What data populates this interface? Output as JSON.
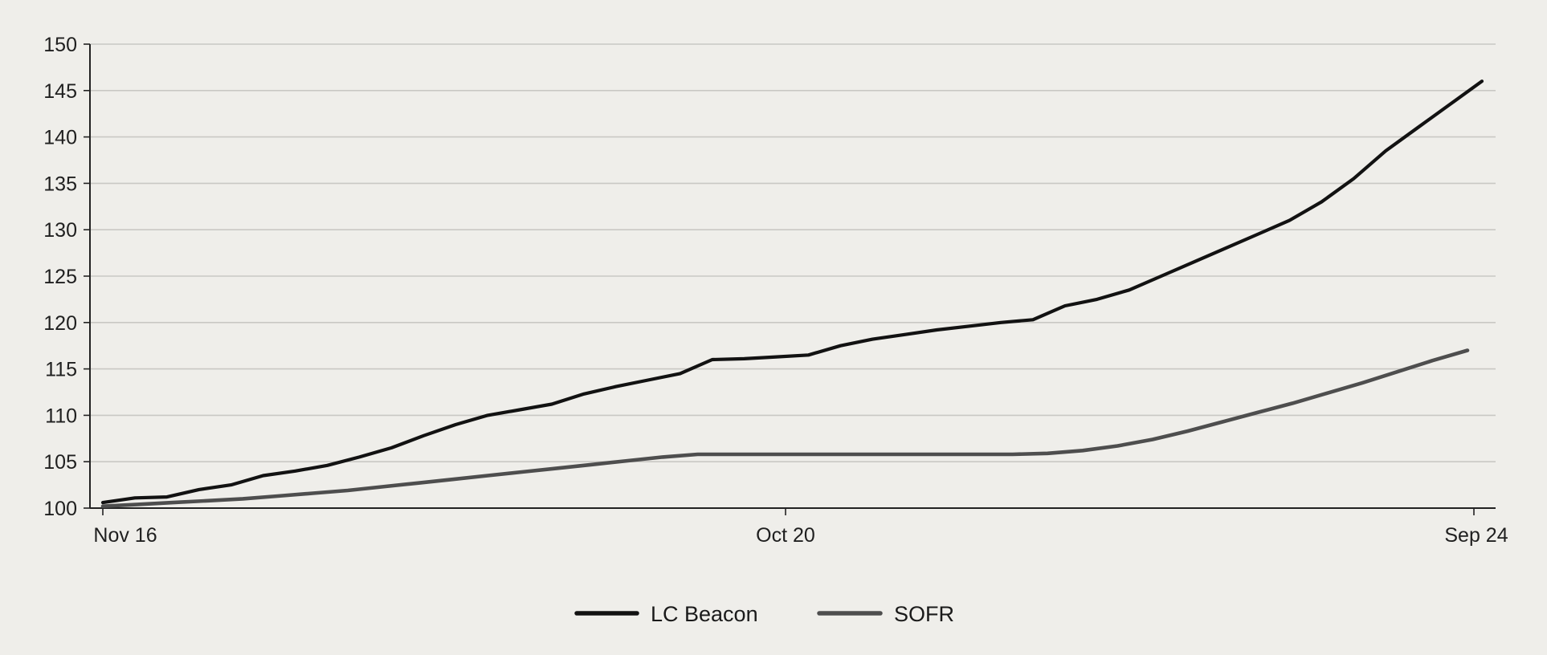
{
  "chart_data": {
    "type": "line",
    "title": "",
    "xlabel": "",
    "ylabel": "",
    "ylim": [
      100,
      150
    ],
    "yticks": [
      100,
      105,
      110,
      115,
      120,
      125,
      130,
      135,
      140,
      145,
      150
    ],
    "x_tick_labels": [
      "Nov 16",
      "Oct 20",
      "Sep 24"
    ],
    "grid": true,
    "legend_position": "bottom-center",
    "series": [
      {
        "name": "LC Beacon",
        "color": "#121212",
        "values": [
          100.6,
          101.1,
          101.2,
          102.0,
          102.5,
          103.5,
          104.0,
          104.6,
          105.5,
          106.5,
          107.8,
          109.0,
          110.0,
          110.6,
          111.2,
          112.3,
          113.1,
          113.8,
          114.5,
          116.0,
          116.1,
          116.3,
          116.5,
          117.5,
          118.2,
          118.7,
          119.2,
          119.6,
          120.0,
          120.3,
          121.8,
          122.5,
          123.5,
          125.0,
          126.5,
          128.0,
          129.5,
          131.0,
          133.0,
          135.5,
          138.5,
          141.0,
          143.5,
          146.0
        ]
      },
      {
        "name": "SOFR",
        "color": "#4e4e4e",
        "values": [
          100.2,
          100.4,
          100.6,
          100.8,
          101.0,
          101.3,
          101.6,
          101.9,
          102.3,
          102.7,
          103.1,
          103.5,
          103.9,
          104.3,
          104.7,
          105.1,
          105.5,
          105.8,
          105.8,
          105.8,
          105.8,
          105.8,
          105.8,
          105.8,
          105.8,
          105.8,
          105.8,
          105.9,
          106.2,
          106.7,
          107.4,
          108.3,
          109.3,
          110.3,
          111.3,
          112.4,
          113.5,
          114.7,
          115.9,
          117.0
        ]
      }
    ]
  }
}
